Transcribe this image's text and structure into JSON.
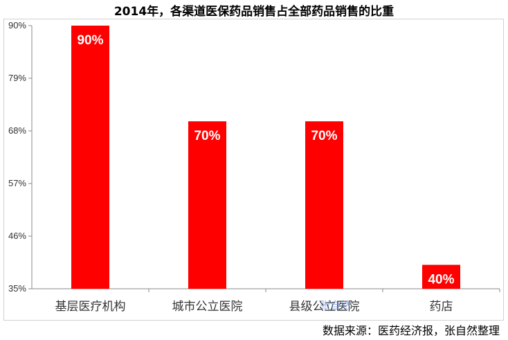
{
  "chart_data": {
    "type": "bar",
    "title": "2014年，各渠道医保药品销售占全部药品销售的比重",
    "categories": [
      "基层医疗机构",
      "城市公立医院",
      "县级公立医院",
      "药店"
    ],
    "values": [
      90,
      70,
      70,
      40
    ],
    "data_labels": [
      "90%",
      "70%",
      "70%",
      "40%"
    ],
    "y_ticks": [
      "90%",
      "79%",
      "68%",
      "57%",
      "46%",
      "35%"
    ],
    "ylim": [
      35,
      90
    ],
    "xlabel": "",
    "ylabel": "",
    "grid": false,
    "bar_color": "#ff0000"
  },
  "source": "数据来源：医药经济报，张自然整理",
  "watermark": "张自然"
}
